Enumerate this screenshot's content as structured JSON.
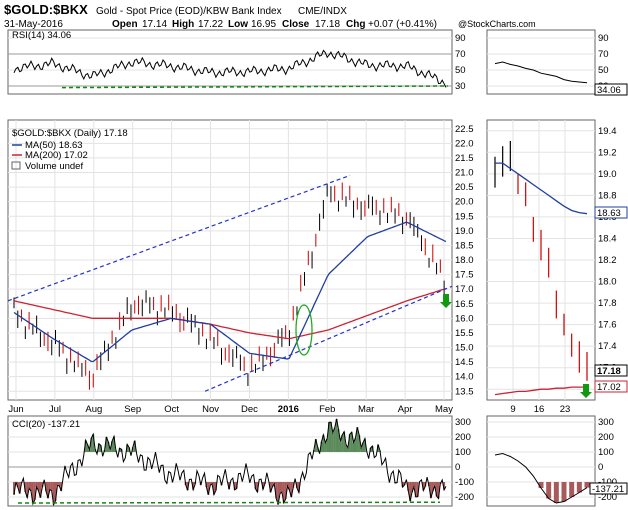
{
  "header": {
    "symbol": "$GOLD:$BKX",
    "description": "Gold - Spot Price (EOD)/KBW Bank Index",
    "exchange": "CME/INDX",
    "date": "31-May-2016",
    "open_label": "Open",
    "open": "17.14",
    "high_label": "High",
    "high": "17.22",
    "low_label": "Low",
    "low": "16.95",
    "close_label": "Close",
    "close": "17.18",
    "chg_label": "Chg",
    "chg": "+0.07 (+0.41%)",
    "watermark": "@StockCharts.com"
  },
  "legend": {
    "price": "$GOLD:$BKX (Daily) 17.18",
    "ma50": "MA(50) 18.63",
    "ma200": "MA(200) 17.02",
    "volume": "Volume undef"
  },
  "rsi_legend": "RSI(14) 34.06",
  "cci_legend": "CCI(20) -137.21",
  "badges": {
    "main_ma50": "18.63",
    "main_close": "17.18",
    "main_ma200": "17.02",
    "rsi": "34.06",
    "cci": "-137.21"
  },
  "colors": {
    "price_bars": "#000000",
    "down_bars": "#cc0000",
    "ma50": "#1f3f9f",
    "ma200": "#cc2233",
    "trendline": "#2233cc",
    "support": "#118811",
    "cci_pos_fill": "#5b8a5b",
    "cci_neg_fill": "#a85a5a",
    "ellipse": "#22aa22",
    "arrow": "#119911"
  },
  "chart_data": [
    {
      "type": "line",
      "panel": "rsi",
      "title": "RSI(14) 34.06",
      "y_ticks": [
        30,
        50,
        70,
        90
      ],
      "ylim": [
        20,
        100
      ],
      "x": [
        "Jun",
        "Jul",
        "Aug",
        "Sep",
        "Oct",
        "Nov",
        "Dec",
        "Jan",
        "Feb",
        "Mar",
        "Apr",
        "May"
      ],
      "values": [
        52,
        58,
        42,
        60,
        55,
        47,
        48,
        52,
        72,
        56,
        55,
        34
      ]
    },
    {
      "type": "line",
      "panel": "price",
      "title": "$GOLD:$BKX (Daily) 17.18",
      "x_labels": [
        "Jun",
        "Jul",
        "Aug",
        "Sep",
        "Oct",
        "Nov",
        "Dec",
        "2016",
        "Feb",
        "Mar",
        "Apr",
        "May"
      ],
      "y_ticks": [
        13.5,
        14.0,
        14.5,
        15.0,
        15.5,
        16.0,
        16.5,
        17.0,
        17.5,
        18.0,
        18.5,
        19.0,
        19.5,
        20.0,
        20.5,
        21.0,
        21.5,
        22.0,
        22.5
      ],
      "ylim": [
        13.2,
        22.8
      ],
      "series": [
        {
          "name": "$GOLD:$BKX",
          "values": [
            16.2,
            15.1,
            14.0,
            16.5,
            16.3,
            15.3,
            14.2,
            15.5,
            20.3,
            19.8,
            19.5,
            17.18
          ]
        },
        {
          "name": "MA(50)",
          "values": [
            16.2,
            15.3,
            14.5,
            15.6,
            16.0,
            15.8,
            14.8,
            14.6,
            17.5,
            18.8,
            19.3,
            18.63
          ]
        },
        {
          "name": "MA(200)",
          "values": [
            16.6,
            16.3,
            16.0,
            16.0,
            16.0,
            15.8,
            15.5,
            15.3,
            15.6,
            16.1,
            16.6,
            17.02
          ]
        }
      ]
    },
    {
      "type": "bar",
      "panel": "zoom",
      "x_labels": [
        "9",
        "16",
        "23"
      ],
      "y_ticks": [
        17.0,
        17.2,
        17.4,
        17.6,
        17.8,
        18.0,
        18.2,
        18.4,
        18.6,
        18.8,
        19.0,
        19.2,
        19.4
      ],
      "ylim": [
        16.9,
        19.5
      ],
      "series": [
        {
          "name": "$GOLD:$BKX",
          "values": [
            19.0,
            19.1,
            19.2,
            18.9,
            18.8,
            18.5,
            18.3,
            18.2,
            17.8,
            17.6,
            17.4,
            17.3,
            17.18
          ]
        },
        {
          "name": "MA(50)",
          "values": [
            19.1,
            19.1,
            19.05,
            19.0,
            18.95,
            18.9,
            18.85,
            18.8,
            18.75,
            18.7,
            18.66,
            18.64,
            18.63
          ]
        },
        {
          "name": "MA(200)",
          "values": [
            16.95,
            16.96,
            16.97,
            16.98,
            16.98,
            16.99,
            17.0,
            17.0,
            17.01,
            17.01,
            17.02,
            17.02,
            17.02
          ]
        }
      ]
    },
    {
      "type": "line",
      "panel": "cci",
      "title": "CCI(20) -137.21",
      "y_ticks": [
        -200,
        -100,
        0,
        100,
        200,
        300
      ],
      "ylim": [
        -260,
        340
      ],
      "x": [
        "Jun",
        "Jul",
        "Aug",
        "Sep",
        "Oct",
        "Nov",
        "Dec",
        "Jan",
        "Feb",
        "Mar",
        "Apr",
        "May"
      ],
      "values": [
        -150,
        -180,
        160,
        100,
        -50,
        -120,
        -60,
        -210,
        260,
        150,
        -150,
        -137.21
      ]
    }
  ]
}
